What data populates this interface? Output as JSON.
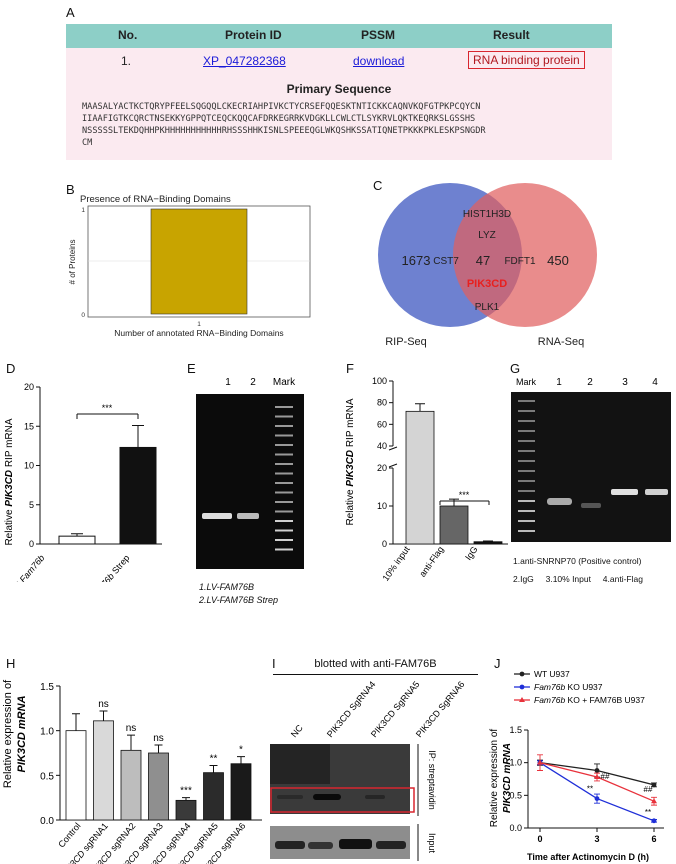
{
  "panel_labels": {
    "a": "A",
    "b": "B",
    "c": "C",
    "d": "D",
    "e": "E",
    "f": "F",
    "g": "G",
    "h": "H",
    "i": "I",
    "j": "J"
  },
  "panel_a": {
    "headers": [
      "No.",
      "Protein ID",
      "PSSM",
      "Result"
    ],
    "row": {
      "no": "1.",
      "protein_id": "XP_047282368",
      "pssm": "download",
      "result": "RNA binding protein"
    },
    "seq_title": "Primary Sequence",
    "sequence": [
      "MAASALYACTKCTQRYPFEELSQGQQLCKECRIAHPIVKCTYCRSEFQQESKTNTICKKCAQNVKQFGTPKPCQYCN",
      "IIAAFIGTKCQRCTNSEKKYGPPQTCEQCKQQCAFDRKEGRRKVDGKLLCWLCTLSYKRVLQKTKEQRKSLGSSHS",
      "NSSSSSLTEKDQHHPKHHHHHHHHHHHRHSSSHHKISNLSPEEEQGLWKQSHKSSATIQNETPKKKPKLESKPSNGDR",
      "CM"
    ]
  },
  "chart_data": [
    {
      "id": "B",
      "type": "bar",
      "title": "Presence of RNA−Binding Domains",
      "categories": [
        "1"
      ],
      "values": [
        1
      ],
      "ylim": [
        0,
        1
      ],
      "yticks": [
        "0",
        "1"
      ],
      "xlabel": "Number of annotated RNA−Binding Domains",
      "ylabel": "# of Proteins",
      "color": "#c8a400"
    },
    {
      "id": "C",
      "type": "venn",
      "sets": [
        {
          "name": "RIP-Seq",
          "only": "1673",
          "color": "#5a6fc9"
        },
        {
          "name": "RNA-Seq",
          "only": "450",
          "color": "#e06060"
        }
      ],
      "intersection": "47",
      "intersection_genes": [
        "HIST1H3D",
        "LYZ",
        "CST7",
        "FDFT1",
        "PIK3CD",
        "PLK1"
      ],
      "highlight": "PIK3CD"
    },
    {
      "id": "D",
      "type": "bar",
      "categories": [
        "LV-Fam76b",
        "LV-Fam76b Strep"
      ],
      "values": [
        1.0,
        12.3
      ],
      "errors": [
        0.3,
        2.8
      ],
      "ylim": [
        0,
        20
      ],
      "yticks": [
        "0",
        "5",
        "10",
        "15",
        "20"
      ],
      "ylabel": "Relative PIK3CD RIP mRNA",
      "significance": "***"
    },
    {
      "id": "F",
      "type": "bar",
      "categories": [
        "10% input",
        "anti-Flag",
        "IgG"
      ],
      "values": [
        72,
        10,
        0.6
      ],
      "errors": [
        7,
        1.8,
        0.2
      ],
      "ylim": [
        0,
        100
      ],
      "axis_break": [
        20,
        40
      ],
      "yticks": [
        "0",
        "10",
        "20",
        "40",
        "60",
        "80",
        "100"
      ],
      "ylabel": "Relative PIK3CD RIP mRNA",
      "significance": "***"
    },
    {
      "id": "H",
      "type": "bar",
      "categories": [
        "Control",
        "PIK3CD sgRNA1",
        "PIK3CD sgRNA2",
        "PIK3CD sgRNA3",
        "PIK3CD sgRNA4",
        "PIK3CD sgRNA5",
        "PIK3CD sgRNA6"
      ],
      "values": [
        1.0,
        1.11,
        0.78,
        0.75,
        0.22,
        0.53,
        0.63
      ],
      "errors": [
        0.19,
        0.11,
        0.17,
        0.09,
        0.03,
        0.08,
        0.08
      ],
      "labels": [
        "",
        "ns",
        "ns",
        "ns",
        "***",
        "**",
        "*"
      ],
      "ylim": [
        0,
        1.5
      ],
      "yticks": [
        "0.0",
        "0.5",
        "1.0",
        "1.5"
      ],
      "ylabel": "Relative expression of PIK3CD mRNA"
    },
    {
      "id": "J",
      "type": "line",
      "x": [
        0,
        3,
        6
      ],
      "xticks": [
        "0",
        "3",
        "6"
      ],
      "xlabel": "Time after Actinomycin D (h)",
      "ylabel": "Relative expression of PIK3CD mRNA",
      "ylim": [
        0,
        1.5
      ],
      "yticks": [
        "0.0",
        "0.5",
        "1.0",
        "1.5"
      ],
      "series": [
        {
          "name": "WT U937",
          "color": "#222222",
          "values": [
            1.0,
            0.88,
            0.66
          ],
          "errors": [
            0.04,
            0.1,
            0.03
          ]
        },
        {
          "name": "Fam76b KO U937",
          "color": "#1f2fd8",
          "values": [
            1.0,
            0.45,
            0.11
          ],
          "errors": [
            0.03,
            0.07,
            0.02
          ]
        },
        {
          "name": "Fam76b KO + FAM76B U937",
          "color": "#e8323c",
          "values": [
            1.0,
            0.78,
            0.41
          ],
          "errors": [
            0.12,
            0.06,
            0.06
          ]
        }
      ],
      "annotations": [
        "**",
        "##",
        "##",
        "**"
      ]
    }
  ],
  "panel_e": {
    "lanes": [
      "1",
      "2",
      "Mark"
    ],
    "legend": [
      "1.LV-FAM76B",
      "2.LV-FAM76B Strep"
    ]
  },
  "panel_g": {
    "lanes": [
      "Mark",
      "1",
      "2",
      "3",
      "4"
    ],
    "legend1": "1.anti-SNRNP70 (Positive control)",
    "legend2": [
      "2.IgG",
      "3.10% Input",
      "4.anti-Flag"
    ]
  },
  "panel_i": {
    "title": "blotted with anti-FAM76B",
    "lanes": [
      "NC",
      "PIK3CD SgRNA4",
      "PIK3CD SgRNA5",
      "PIK3CD SgRNA6"
    ],
    "side_top": "IP: streptavidin",
    "side_bottom": "Input"
  }
}
